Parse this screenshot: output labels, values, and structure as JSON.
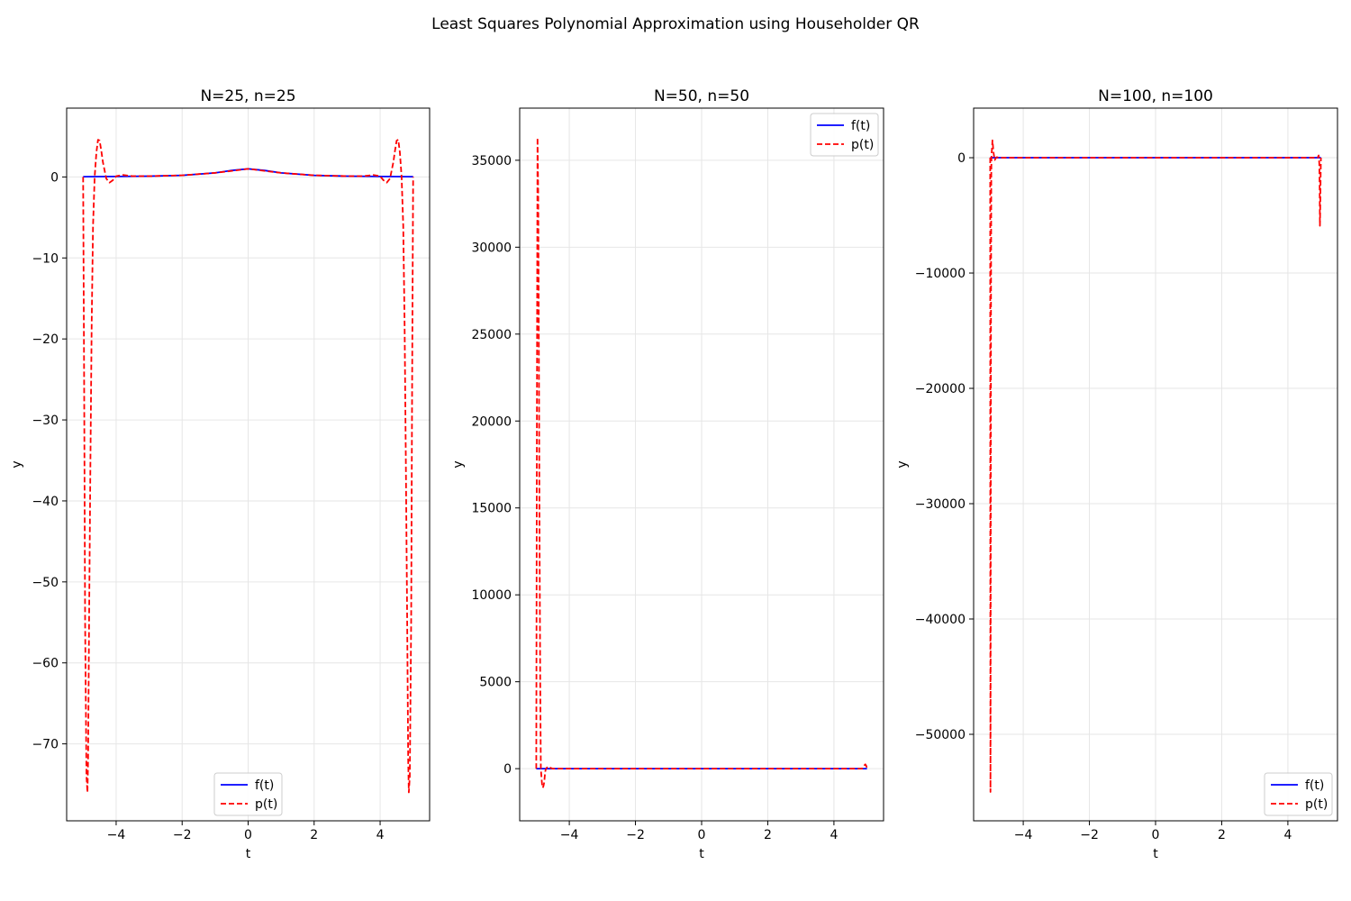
{
  "figure": {
    "suptitle": "Least Squares Polynomial Approximation using Householder QR"
  },
  "colors": {
    "f_line": "#0000ff",
    "p_line": "#ff0000",
    "grid": "#e6e6e6",
    "axes": "#000000",
    "legend_border": "#cccccc"
  },
  "chart_data": [
    {
      "type": "line",
      "title": "N=25, n=25",
      "xlabel": "t",
      "ylabel": "y",
      "xlim": [
        -5.5,
        5.5
      ],
      "ylim": [
        -79.5,
        8.5
      ],
      "xticks": [
        -4,
        -2,
        0,
        2,
        4
      ],
      "xtick_labels": [
        "−4",
        "−2",
        "0",
        "2",
        "4"
      ],
      "yticks": [
        0,
        -10,
        -20,
        -30,
        -40,
        -50,
        -60,
        -70
      ],
      "ytick_labels": [
        "0",
        "−10",
        "−20",
        "−30",
        "−40",
        "−50",
        "−60",
        "−70"
      ],
      "grid": true,
      "legend_position": "lower center",
      "series": [
        {
          "name": "f(t)",
          "style": "solid",
          "color": "#0000ff",
          "x": [
            -5,
            -4,
            -3,
            -2,
            -1,
            -0.5,
            0,
            0.5,
            1,
            2,
            3,
            4,
            5
          ],
          "y": [
            0.038,
            0.059,
            0.1,
            0.2,
            0.5,
            0.8,
            1,
            0.8,
            0.5,
            0.2,
            0.1,
            0.059,
            0.038
          ]
        },
        {
          "name": "p(t)",
          "style": "dashed",
          "color": "#ff0000",
          "x": [
            -5,
            -4.97,
            -4.94,
            -4.9,
            -4.87,
            -4.85,
            -4.82,
            -4.78,
            -4.74,
            -4.7,
            -4.65,
            -4.6,
            -4.55,
            -4.5,
            -4.45,
            -4.4,
            -4.3,
            -4.2,
            -4.1,
            -4.0,
            -3.8,
            -3.5,
            -3,
            -2,
            -1,
            0,
            1,
            2,
            3,
            3.5,
            3.8,
            4.0,
            4.1,
            4.2,
            4.3,
            4.4,
            4.45,
            4.5,
            4.55,
            4.6,
            4.65,
            4.7,
            4.74,
            4.78,
            4.82,
            4.85,
            4.87,
            4.9,
            4.94,
            4.97,
            5
          ],
          "y": [
            0,
            -25,
            -55,
            -74,
            -76,
            -72,
            -55,
            -35,
            -18,
            -6,
            0,
            3,
            4.6,
            4.5,
            3.2,
            1.8,
            -0.2,
            -0.7,
            -0.4,
            0.1,
            0.25,
            0.1,
            0.1,
            0.2,
            0.5,
            1,
            0.5,
            0.2,
            0.1,
            0.1,
            0.25,
            0.1,
            -0.4,
            -0.7,
            -0.2,
            1.8,
            3.2,
            4.5,
            4.6,
            3,
            0,
            -6,
            -18,
            -35,
            -55,
            -72,
            -76,
            -74,
            -55,
            -25,
            0
          ]
        }
      ]
    },
    {
      "type": "line",
      "title": "N=50, n=50",
      "xlabel": "t",
      "ylabel": "y",
      "xlim": [
        -5.5,
        5.5
      ],
      "ylim": [
        -3000,
        38000
      ],
      "xticks": [
        -4,
        -2,
        0,
        2,
        4
      ],
      "xtick_labels": [
        "−4",
        "−2",
        "0",
        "2",
        "4"
      ],
      "yticks": [
        0,
        5000,
        10000,
        15000,
        20000,
        25000,
        30000,
        35000
      ],
      "ytick_labels": [
        "0",
        "5000",
        "10000",
        "15000",
        "20000",
        "25000",
        "30000",
        "35000"
      ],
      "grid": true,
      "legend_position": "upper right",
      "series": [
        {
          "name": "f(t)",
          "style": "solid",
          "color": "#0000ff",
          "x": [
            -5,
            -4,
            -2,
            0,
            2,
            4,
            5
          ],
          "y": [
            0.038,
            0.059,
            0.2,
            1,
            0.2,
            0.059,
            0.038
          ]
        },
        {
          "name": "p(t)",
          "style": "dashed",
          "color": "#ff0000",
          "x": [
            -5,
            -4.98,
            -4.96,
            -4.94,
            -4.92,
            -4.9,
            -4.88,
            -4.86,
            -4.84,
            -4.82,
            -4.8,
            -4.78,
            -4.76,
            -4.74,
            -4.72,
            -4.7,
            -4.65,
            -4.6,
            -4.55,
            -4.5,
            -4,
            -2,
            0,
            2,
            4,
            4.85,
            4.9,
            4.95,
            4.98,
            5
          ],
          "y": [
            0,
            20000,
            36300,
            33000,
            24000,
            14000,
            5000,
            0,
            -500,
            -1000,
            -1100,
            -1000,
            -800,
            -400,
            -100,
            0,
            120,
            80,
            30,
            0,
            0,
            0,
            0,
            0,
            0,
            0,
            150,
            250,
            150,
            0
          ]
        }
      ]
    },
    {
      "type": "line",
      "title": "N=100, n=100",
      "xlabel": "t",
      "ylabel": "y",
      "xlim": [
        -5.5,
        5.5
      ],
      "ylim": [
        -57500,
        4300
      ],
      "xticks": [
        -4,
        -2,
        0,
        2,
        4
      ],
      "xtick_labels": [
        "−4",
        "−2",
        "0",
        "2",
        "4"
      ],
      "yticks": [
        0,
        -10000,
        -20000,
        -30000,
        -40000,
        -50000
      ],
      "ytick_labels": [
        "0",
        "−10000",
        "−20000",
        "−30000",
        "−40000",
        "−50000"
      ],
      "grid": true,
      "legend_position": "lower right",
      "series": [
        {
          "name": "f(t)",
          "style": "solid",
          "color": "#0000ff",
          "x": [
            -5,
            -4,
            -2,
            0,
            2,
            4,
            5
          ],
          "y": [
            0.038,
            0.059,
            0.2,
            1,
            0.2,
            0.059,
            0.038
          ]
        },
        {
          "name": "p(t)",
          "style": "dashed",
          "color": "#ff0000",
          "x": [
            -5,
            -4.995,
            -4.99,
            -4.985,
            -4.98,
            -4.975,
            -4.97,
            -4.965,
            -4.96,
            -4.95,
            -4.94,
            -4.93,
            -4.92,
            -4.9,
            -4.88,
            -4.86,
            -4.84,
            -4.82,
            -4.8,
            -4.75,
            -4.7,
            -4,
            -2,
            0,
            2,
            4,
            4.9,
            4.93,
            4.95,
            4.96,
            4.97,
            4.98,
            4.99,
            5
          ],
          "y": [
            0,
            -30000,
            -55000,
            -42000,
            -25000,
            -12000,
            -5000,
            -1500,
            0,
            600,
            1000,
            1500,
            1200,
            500,
            100,
            -200,
            -100,
            0,
            50,
            0,
            0,
            0,
            0,
            0,
            0,
            0,
            0,
            200,
            -500,
            -2500,
            -5900,
            -4000,
            -1500,
            0
          ]
        }
      ]
    }
  ]
}
